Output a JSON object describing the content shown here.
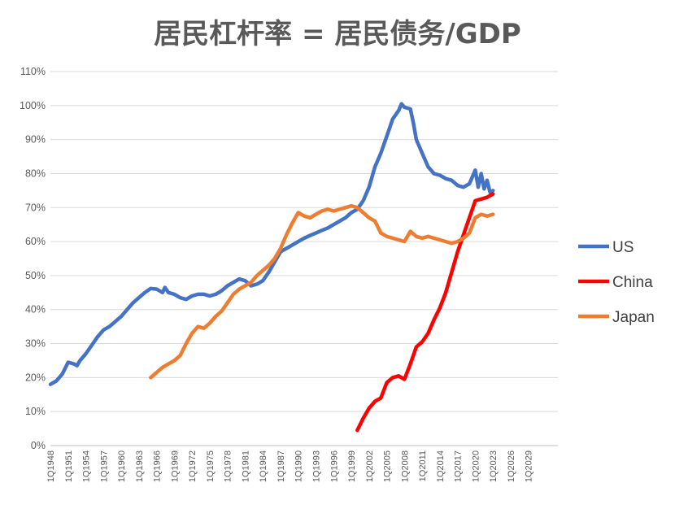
{
  "chart_data": {
    "type": "line",
    "title": "居民杠杆率 = 居民债务/GDP",
    "xlabel": "",
    "ylabel": "",
    "ylim": [
      0,
      110
    ],
    "y_unit": "%",
    "y_ticks": [
      0,
      10,
      20,
      30,
      40,
      50,
      60,
      70,
      80,
      90,
      100,
      110
    ],
    "y_tick_labels": [
      "0%",
      "10%",
      "20%",
      "30%",
      "40%",
      "50%",
      "60%",
      "70%",
      "80%",
      "90%",
      "100%",
      "110%"
    ],
    "xlim": [
      1948,
      2034
    ],
    "x_ticks": [
      1948,
      1951,
      1954,
      1957,
      1960,
      1963,
      1966,
      1969,
      1972,
      1975,
      1978,
      1981,
      1984,
      1987,
      1990,
      1993,
      1996,
      1999,
      2002,
      2005,
      2008,
      2011,
      2014,
      2017,
      2020,
      2023,
      2026,
      2029
    ],
    "x_tick_labels": [
      "1Q1948",
      "1Q1951",
      "1Q1954",
      "1Q1957",
      "1Q1960",
      "1Q1963",
      "1Q1966",
      "1Q1969",
      "1Q1972",
      "1Q1975",
      "1Q1978",
      "1Q1981",
      "1Q1984",
      "1Q1987",
      "1Q1990",
      "1Q1993",
      "1Q1996",
      "1Q1999",
      "1Q2002",
      "1Q2005",
      "1Q2008",
      "1Q2011",
      "1Q2014",
      "1Q2017",
      "1Q2020",
      "1Q2023",
      "1Q2026",
      "1Q2029"
    ],
    "grid": true,
    "legend_position": "right",
    "series": [
      {
        "name": "US",
        "color": "#4472C4",
        "points": [
          [
            1948,
            18
          ],
          [
            1949,
            19
          ],
          [
            1950,
            21
          ],
          [
            1951,
            24.5
          ],
          [
            1952,
            24
          ],
          [
            1952.5,
            23.5
          ],
          [
            1953,
            25
          ],
          [
            1954,
            27
          ],
          [
            1955,
            29.5
          ],
          [
            1956,
            32
          ],
          [
            1957,
            34
          ],
          [
            1958,
            35
          ],
          [
            1959,
            36.5
          ],
          [
            1960,
            38
          ],
          [
            1961,
            40
          ],
          [
            1962,
            42
          ],
          [
            1963,
            43.5
          ],
          [
            1964,
            45
          ],
          [
            1965,
            46.2
          ],
          [
            1966,
            46
          ],
          [
            1967,
            45
          ],
          [
            1967.4,
            46.5
          ],
          [
            1968,
            45
          ],
          [
            1969,
            44.5
          ],
          [
            1970,
            43.5
          ],
          [
            1971,
            43
          ],
          [
            1972,
            44
          ],
          [
            1973,
            44.5
          ],
          [
            1974,
            44.5
          ],
          [
            1975,
            44
          ],
          [
            1976,
            44.5
          ],
          [
            1977,
            45.5
          ],
          [
            1978,
            47
          ],
          [
            1979,
            48
          ],
          [
            1980,
            49
          ],
          [
            1981,
            48.5
          ],
          [
            1982,
            47
          ],
          [
            1983,
            47.5
          ],
          [
            1984,
            48.5
          ],
          [
            1985,
            51
          ],
          [
            1986,
            54
          ],
          [
            1987,
            57
          ],
          [
            1988,
            58
          ],
          [
            1989,
            59
          ],
          [
            1990,
            60
          ],
          [
            1991,
            61
          ],
          [
            1992,
            61.8
          ],
          [
            1993,
            62.5
          ],
          [
            1994,
            63.3
          ],
          [
            1995,
            64
          ],
          [
            1996,
            65
          ],
          [
            1997,
            66
          ],
          [
            1998,
            67
          ],
          [
            1999,
            68.5
          ],
          [
            2000,
            69.5
          ],
          [
            2001,
            72
          ],
          [
            2002,
            76
          ],
          [
            2003,
            82
          ],
          [
            2004,
            86
          ],
          [
            2005,
            91
          ],
          [
            2006,
            96
          ],
          [
            2007,
            98.5
          ],
          [
            2007.5,
            100.5
          ],
          [
            2008,
            99.5
          ],
          [
            2009,
            99
          ],
          [
            2009.5,
            95
          ],
          [
            2010,
            90
          ],
          [
            2011,
            86
          ],
          [
            2012,
            82
          ],
          [
            2013,
            80
          ],
          [
            2014,
            79.5
          ],
          [
            2015,
            78.5
          ],
          [
            2016,
            78
          ],
          [
            2017,
            76.5
          ],
          [
            2018,
            76
          ],
          [
            2019,
            77
          ],
          [
            2020,
            81
          ],
          [
            2020.5,
            76
          ],
          [
            2021,
            80
          ],
          [
            2021.5,
            75.5
          ],
          [
            2022,
            78
          ],
          [
            2022.5,
            74.5
          ],
          [
            2023,
            75
          ]
        ]
      },
      {
        "name": "China",
        "color": "#FF0000",
        "points": [
          [
            2000,
            4.5
          ],
          [
            2001,
            8
          ],
          [
            2002,
            11
          ],
          [
            2003,
            13
          ],
          [
            2004,
            14
          ],
          [
            2005,
            18.5
          ],
          [
            2006,
            20
          ],
          [
            2007,
            20.5
          ],
          [
            2008,
            19.5
          ],
          [
            2009,
            24
          ],
          [
            2010,
            29
          ],
          [
            2011,
            30.5
          ],
          [
            2012,
            33
          ],
          [
            2013,
            37
          ],
          [
            2014,
            40.5
          ],
          [
            2015,
            45
          ],
          [
            2016,
            51
          ],
          [
            2017,
            57
          ],
          [
            2018,
            62
          ],
          [
            2019,
            67
          ],
          [
            2020,
            72
          ],
          [
            2021,
            72.5
          ],
          [
            2022,
            73
          ],
          [
            2023,
            74
          ]
        ]
      },
      {
        "name": "Japan",
        "color": "#ED7D31",
        "points": [
          [
            1965,
            20
          ],
          [
            1966,
            21.5
          ],
          [
            1967,
            23
          ],
          [
            1968,
            24
          ],
          [
            1969,
            25
          ],
          [
            1970,
            26.5
          ],
          [
            1971,
            30
          ],
          [
            1972,
            33
          ],
          [
            1973,
            35
          ],
          [
            1974,
            34.5
          ],
          [
            1975,
            36
          ],
          [
            1976,
            38
          ],
          [
            1977,
            39.5
          ],
          [
            1978,
            42
          ],
          [
            1979,
            44.5
          ],
          [
            1980,
            46
          ],
          [
            1981,
            47
          ],
          [
            1982,
            48
          ],
          [
            1983,
            50
          ],
          [
            1984,
            51.5
          ],
          [
            1985,
            53
          ],
          [
            1986,
            55
          ],
          [
            1987,
            58
          ],
          [
            1988,
            62
          ],
          [
            1989,
            65.5
          ],
          [
            1990,
            68.5
          ],
          [
            1991,
            67.5
          ],
          [
            1992,
            67
          ],
          [
            1993,
            68
          ],
          [
            1994,
            69
          ],
          [
            1995,
            69.5
          ],
          [
            1996,
            69
          ],
          [
            1997,
            69.5
          ],
          [
            1998,
            70
          ],
          [
            1999,
            70.5
          ],
          [
            2000,
            70
          ],
          [
            2001,
            68.5
          ],
          [
            2002,
            67
          ],
          [
            2003,
            66
          ],
          [
            2004,
            62.5
          ],
          [
            2005,
            61.5
          ],
          [
            2006,
            61
          ],
          [
            2007,
            60.5
          ],
          [
            2008,
            60
          ],
          [
            2009,
            63
          ],
          [
            2010,
            61.5
          ],
          [
            2011,
            61
          ],
          [
            2012,
            61.5
          ],
          [
            2013,
            61
          ],
          [
            2014,
            60.5
          ],
          [
            2015,
            60
          ],
          [
            2016,
            59.5
          ],
          [
            2017,
            60
          ],
          [
            2018,
            61
          ],
          [
            2019,
            62.5
          ],
          [
            2020,
            67
          ],
          [
            2021,
            68
          ],
          [
            2022,
            67.5
          ],
          [
            2023,
            68
          ]
        ]
      }
    ]
  }
}
